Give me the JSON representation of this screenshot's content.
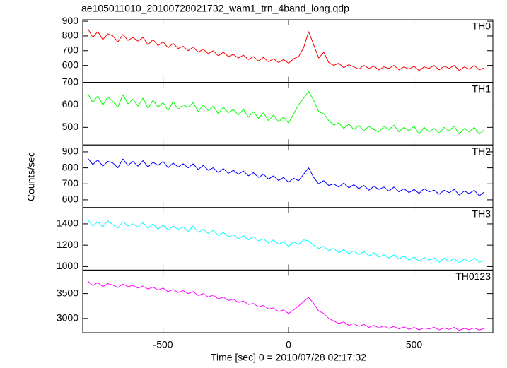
{
  "chart_data": {
    "type": "line",
    "title": "ae105011010_20100728021732_wam1_trn_4band_long.qdp",
    "xlabel": "Time [sec] 0 = 2010/07/28 02:17:32",
    "ylabel": "Counts/sec",
    "xlim": [
      -820,
      814
    ],
    "xticks": [
      -500,
      0,
      500
    ],
    "x": [
      -800,
      -780,
      -760,
      -740,
      -720,
      -700,
      -680,
      -660,
      -640,
      -620,
      -600,
      -580,
      -560,
      -540,
      -520,
      -500,
      -480,
      -460,
      -440,
      -420,
      -400,
      -380,
      -360,
      -340,
      -320,
      -300,
      -280,
      -260,
      -240,
      -220,
      -200,
      -180,
      -160,
      -140,
      -120,
      -100,
      -80,
      -60,
      -40,
      -20,
      0,
      20,
      40,
      60,
      80,
      100,
      120,
      140,
      160,
      180,
      200,
      220,
      240,
      260,
      280,
      300,
      320,
      340,
      360,
      380,
      400,
      420,
      440,
      460,
      480,
      500,
      520,
      540,
      560,
      580,
      600,
      620,
      640,
      660,
      680,
      700,
      720,
      740,
      760,
      780
    ],
    "series": [
      {
        "name": "TH0",
        "color": "#ff0000",
        "ylim": [
          485,
          910
        ],
        "yticks": [
          600,
          700,
          800,
          900
        ],
        "values": [
          850,
          790,
          830,
          775,
          815,
          800,
          760,
          810,
          770,
          790,
          765,
          790,
          740,
          775,
          735,
          760,
          720,
          750,
          715,
          730,
          700,
          725,
          690,
          710,
          680,
          700,
          665,
          690,
          660,
          675,
          650,
          670,
          640,
          660,
          630,
          655,
          625,
          645,
          620,
          640,
          615,
          645,
          660,
          720,
          830,
          740,
          650,
          690,
          620,
          600,
          615,
          585,
          605,
          590,
          575,
          600,
          580,
          595,
          570,
          590,
          580,
          600,
          570,
          590,
          575,
          595,
          565,
          590,
          580,
          600,
          570,
          595,
          580,
          600,
          565,
          590,
          575,
          600,
          570,
          585
        ]
      },
      {
        "name": "TH1",
        "color": "#00ff00",
        "ylim": [
          422,
          700
        ],
        "yticks": [
          500,
          600,
          700
        ],
        "values": [
          650,
          610,
          640,
          600,
          635,
          615,
          590,
          645,
          605,
          625,
          595,
          630,
          585,
          620,
          590,
          610,
          575,
          615,
          580,
          600,
          590,
          610,
          570,
          600,
          575,
          595,
          560,
          590,
          565,
          580,
          555,
          580,
          545,
          570,
          540,
          565,
          530,
          555,
          525,
          545,
          520,
          560,
          600,
          630,
          660,
          620,
          570,
          560,
          530,
          510,
          520,
          495,
          515,
          490,
          510,
          485,
          505,
          490,
          480,
          505,
          490,
          510,
          480,
          500,
          485,
          505,
          470,
          500,
          480,
          495,
          475,
          500,
          485,
          505,
          470,
          495,
          480,
          500,
          470,
          490
        ]
      },
      {
        "name": "TH2",
        "color": "#0000ff",
        "ylim": [
          552,
          943
        ],
        "yticks": [
          600,
          700,
          800,
          900
        ],
        "values": [
          860,
          820,
          850,
          810,
          840,
          830,
          800,
          855,
          815,
          840,
          810,
          845,
          805,
          835,
          815,
          840,
          800,
          830,
          805,
          825,
          800,
          825,
          790,
          815,
          785,
          800,
          770,
          795,
          765,
          785,
          760,
          780,
          750,
          770,
          740,
          760,
          730,
          750,
          720,
          740,
          710,
          735,
          720,
          760,
          800,
          740,
          700,
          720,
          690,
          700,
          680,
          705,
          675,
          695,
          670,
          690,
          660,
          685,
          665,
          680,
          655,
          680,
          650,
          670,
          645,
          665,
          640,
          670,
          650,
          660,
          635,
          660,
          645,
          665,
          630,
          655,
          640,
          660,
          625,
          650
        ]
      },
      {
        "name": "TH3",
        "color": "#00ffff",
        "ylim": [
          967,
          1553
        ],
        "yticks": [
          1000,
          1200,
          1400
        ],
        "values": [
          1440,
          1380,
          1420,
          1370,
          1430,
          1390,
          1360,
          1420,
          1380,
          1400,
          1370,
          1410,
          1360,
          1400,
          1350,
          1390,
          1340,
          1380,
          1350,
          1370,
          1330,
          1380,
          1320,
          1350,
          1310,
          1340,
          1290,
          1320,
          1280,
          1300,
          1260,
          1290,
          1250,
          1280,
          1240,
          1260,
          1220,
          1250,
          1210,
          1230,
          1190,
          1230,
          1210,
          1250,
          1240,
          1200,
          1170,
          1190,
          1150,
          1170,
          1130,
          1160,
          1120,
          1150,
          1110,
          1140,
          1100,
          1130,
          1090,
          1110,
          1080,
          1110,
          1070,
          1100,
          1060,
          1090,
          1050,
          1085,
          1060,
          1080,
          1040,
          1080,
          1050,
          1075,
          1035,
          1070,
          1045,
          1080,
          1040,
          1060
        ]
      },
      {
        "name": "TH0123",
        "color": "#ff00ff",
        "ylim": [
          2714,
          3971
        ],
        "yticks": [
          3000,
          3500
        ],
        "values": [
          3750,
          3660,
          3720,
          3640,
          3700,
          3670,
          3620,
          3690,
          3640,
          3660,
          3610,
          3650,
          3590,
          3630,
          3570,
          3610,
          3540,
          3580,
          3520,
          3560,
          3500,
          3540,
          3460,
          3500,
          3430,
          3470,
          3390,
          3430,
          3360,
          3390,
          3320,
          3350,
          3280,
          3300,
          3230,
          3260,
          3190,
          3210,
          3140,
          3170,
          3100,
          3170,
          3250,
          3340,
          3420,
          3300,
          3150,
          3100,
          3000,
          2950,
          2900,
          2930,
          2860,
          2900,
          2840,
          2880,
          2820,
          2860,
          2810,
          2850,
          2800,
          2840,
          2790,
          2830,
          2780,
          2820,
          2770,
          2810,
          2790,
          2820,
          2770,
          2810,
          2780,
          2820,
          2760,
          2800,
          2775,
          2810,
          2765,
          2800
        ]
      }
    ]
  }
}
